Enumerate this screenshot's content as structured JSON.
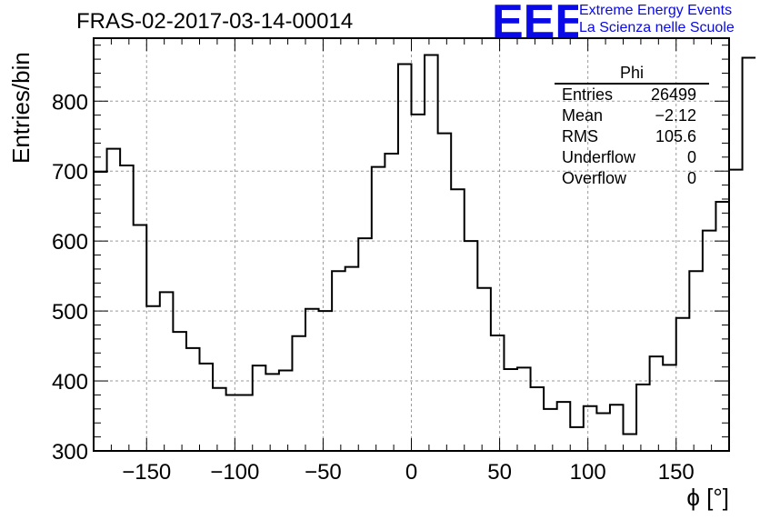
{
  "header": {
    "title": "FRAS-02-2017-03-14-00014",
    "logo_text": "EEE",
    "logo_line1": "Extreme Energy Events",
    "logo_line2": "La Scienza nelle Scuole",
    "logo_color": "#0a0ae6"
  },
  "stats": {
    "title": "Phi",
    "rows": [
      {
        "label": "Entries",
        "value": "26499"
      },
      {
        "label": "Mean",
        "value": "−2.12"
      },
      {
        "label": "RMS",
        "value": "105.6"
      },
      {
        "label": "Underflow",
        "value": "0"
      },
      {
        "label": "Overflow",
        "value": "0"
      }
    ]
  },
  "chart_data": {
    "type": "bar",
    "title": "FRAS-02-2017-03-14-00014",
    "xlabel": "ϕ [°]",
    "ylabel": "Entries/bin",
    "xlim": [
      -180,
      180
    ],
    "ylim": [
      300,
      890
    ],
    "xticks": [
      -150,
      -100,
      -50,
      0,
      50,
      100,
      150
    ],
    "xtick_labels": [
      "−150",
      "−100",
      "−50",
      "0",
      "50",
      "100",
      "150"
    ],
    "yticks": [
      300,
      400,
      500,
      600,
      700,
      800
    ],
    "ytick_labels": [
      "300",
      "400",
      "500",
      "600",
      "700",
      "800"
    ],
    "grid": true,
    "bin_edges_start": -180,
    "bin_width": 7.5,
    "values": [
      699,
      732,
      708,
      623,
      507,
      527,
      470,
      447,
      425,
      390,
      380,
      380,
      422,
      410,
      415,
      464,
      503,
      500,
      557,
      563,
      604,
      706,
      725,
      853,
      781,
      866,
      754,
      674,
      600,
      533,
      465,
      417,
      419,
      391,
      360,
      370,
      334,
      364,
      354,
      366,
      324,
      395,
      435,
      423,
      490,
      557,
      615,
      656,
      702,
      862
    ],
    "line_color": "#000000",
    "grid_color": "#9a9a9a"
  }
}
